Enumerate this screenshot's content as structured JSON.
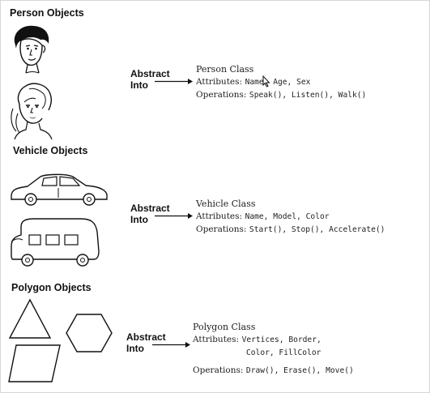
{
  "sections": {
    "person": {
      "heading": "Person Objects",
      "abstract_line1": "Abstract",
      "abstract_line2": "Into",
      "class_title": "Person Class",
      "attributes_label": "Attributes:",
      "attributes": "Name, Age, Sex",
      "operations_label": "Operations:",
      "operations": "Speak(), Listen(), Walk()"
    },
    "vehicle": {
      "heading": "Vehicle Objects",
      "abstract_line1": "Abstract",
      "abstract_line2": "Into",
      "class_title": "Vehicle Class",
      "attributes_label": "Attributes:",
      "attributes": "Name, Model, Color",
      "operations_label": "Operations:",
      "operations": "Start(), Stop(), Accelerate()"
    },
    "polygon": {
      "heading": "Polygon Objects",
      "abstract_line1": "Abstract",
      "abstract_line2": "Into",
      "class_title": "Polygon Class",
      "attributes_label": "Attributes:",
      "attributes_line1": "Vertices, Border,",
      "attributes_line2": "Color, FillColor",
      "operations_label": "Operations:",
      "operations": "Draw(), Erase(), Move()"
    }
  },
  "icons": [
    "man-face-icon",
    "woman-face-icon",
    "car-icon",
    "van-icon",
    "triangle-icon",
    "hexagon-icon",
    "parallelogram-icon",
    "mouse-cursor-icon"
  ]
}
